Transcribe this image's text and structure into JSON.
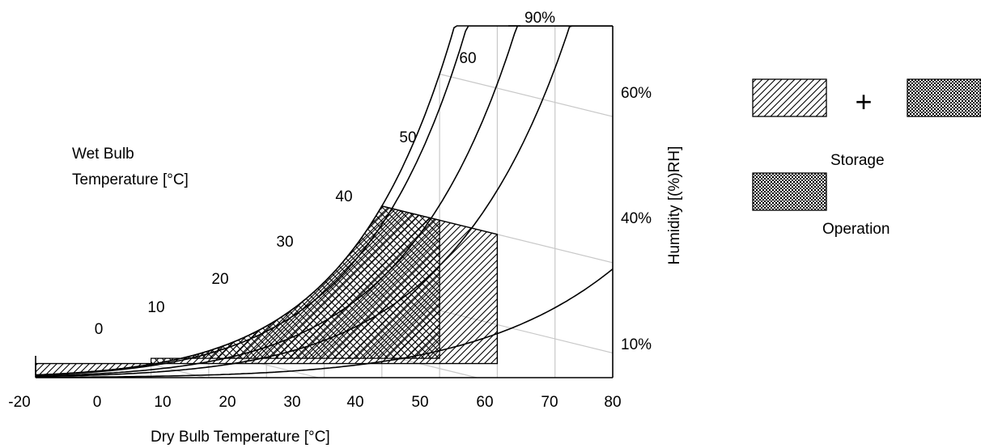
{
  "chart_data": {
    "type": "area",
    "title": "",
    "xlabel": "Dry Bulb Temperature [°C]",
    "ylabel": "Humidity [(%)RH]",
    "wet_bulb_label_line1": "Wet Bulb",
    "wet_bulb_label_line2": "Temperature [°C]",
    "xlim": [
      -20,
      80
    ],
    "x_ticks": [
      "-20",
      "0",
      "10",
      "20",
      "30",
      "40",
      "50",
      "60",
      "70",
      "80"
    ],
    "rh_curves": [
      {
        "label": "90%",
        "rh": 90
      },
      {
        "label": "60%",
        "rh": 60
      },
      {
        "label": "40%",
        "rh": 40
      },
      {
        "label": "10%",
        "rh": 10
      }
    ],
    "wet_bulb_labels": [
      {
        "label": "0",
        "t": 0
      },
      {
        "label": "10",
        "t": 10
      },
      {
        "label": "20",
        "t": 20
      },
      {
        "label": "30",
        "t": 30
      },
      {
        "label": "40",
        "t": 40
      },
      {
        "label": "50",
        "t": 50
      },
      {
        "label": "60",
        "t": 60
      }
    ],
    "regions": [
      {
        "name": "Storage",
        "dry_bulb_range": [
          -20,
          60
        ],
        "pattern": "hatch + crosshatch"
      },
      {
        "name": "Operation",
        "dry_bulb_range": [
          0,
          50
        ],
        "pattern": "crosshatch"
      }
    ],
    "legend": {
      "placement": "right",
      "plus": "+",
      "storage_label": "Storage",
      "operation_label": "Operation"
    }
  }
}
